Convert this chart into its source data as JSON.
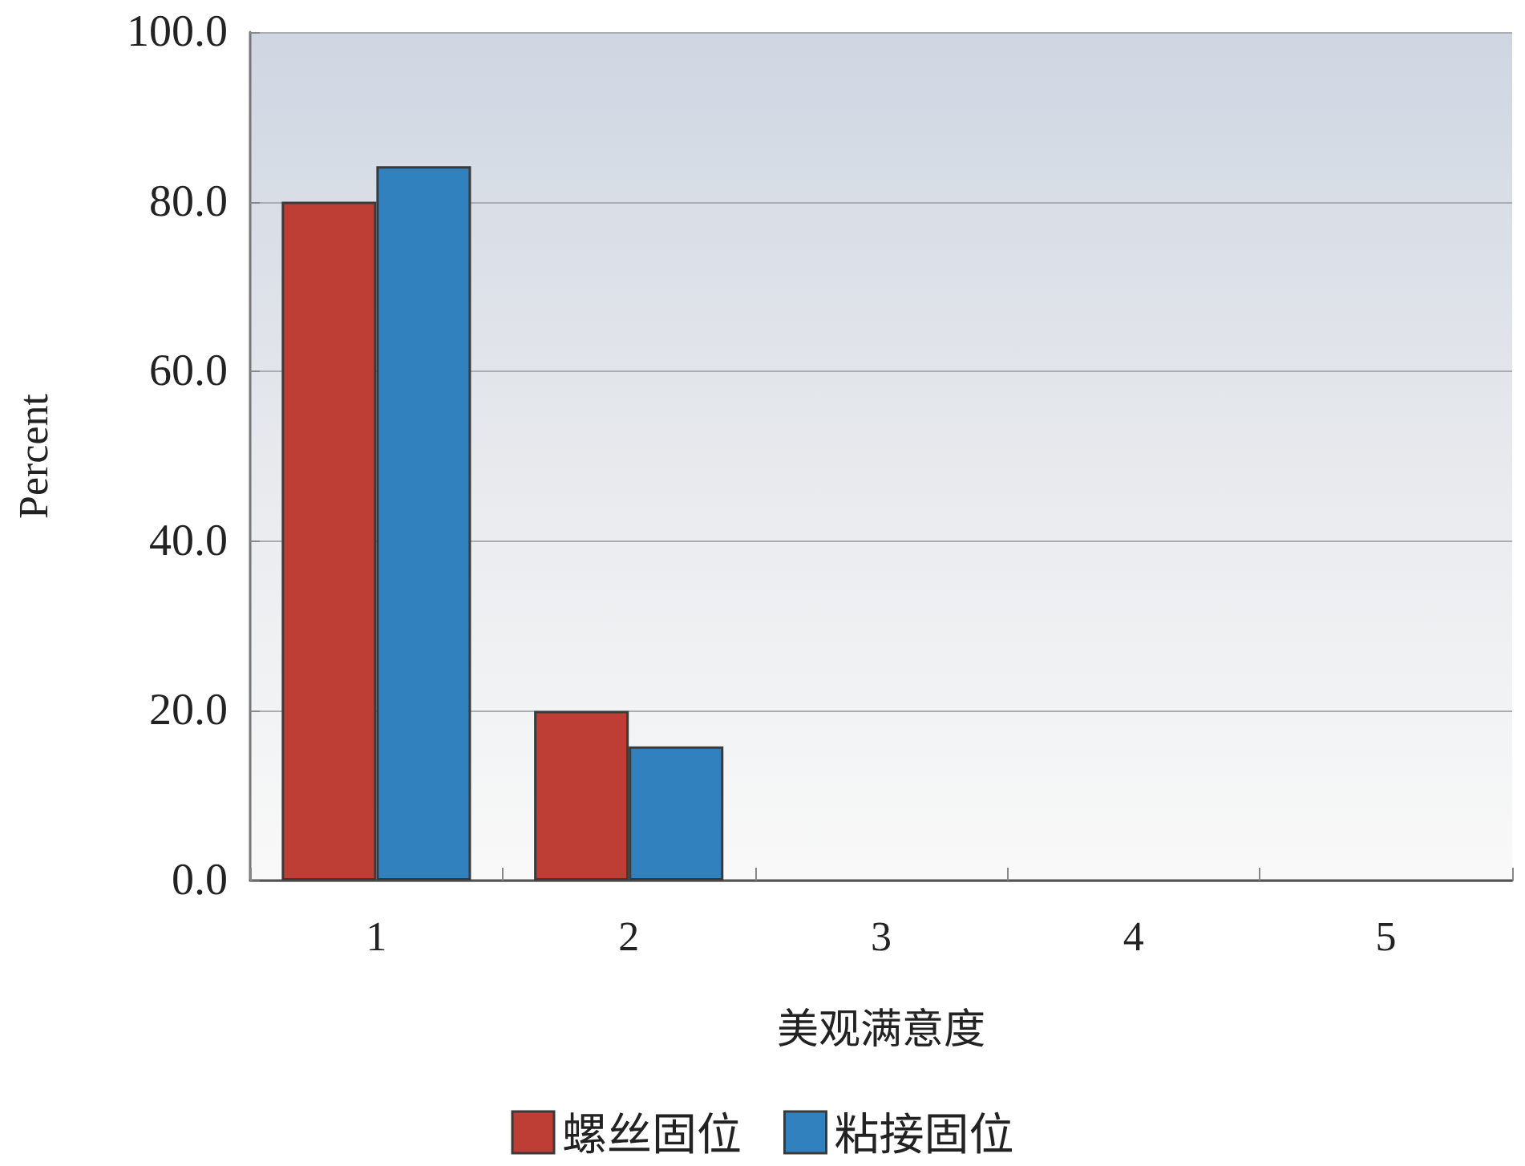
{
  "chart_data": {
    "type": "bar",
    "xlabel": "美观满意度",
    "ylabel": "Percent",
    "categories": [
      "1",
      "2",
      "3",
      "4",
      "5"
    ],
    "series": [
      {
        "name": "螺丝固位",
        "color": "#be3d34",
        "values": [
          80.0,
          20.0,
          0,
          0,
          0
        ]
      },
      {
        "name": "粘接固位",
        "color": "#3181be",
        "values": [
          84.2,
          15.8,
          0,
          0,
          0
        ]
      }
    ],
    "ylim": [
      0,
      100
    ],
    "yticks": [
      {
        "value": 0,
        "label": "0.0"
      },
      {
        "value": 20,
        "label": "20.0"
      },
      {
        "value": 40,
        "label": "40.0"
      },
      {
        "value": 60,
        "label": "60.0"
      },
      {
        "value": 80,
        "label": "80.0"
      },
      {
        "value": 100,
        "label": "100.0"
      }
    ],
    "grid": "y",
    "legend": "bottom"
  }
}
